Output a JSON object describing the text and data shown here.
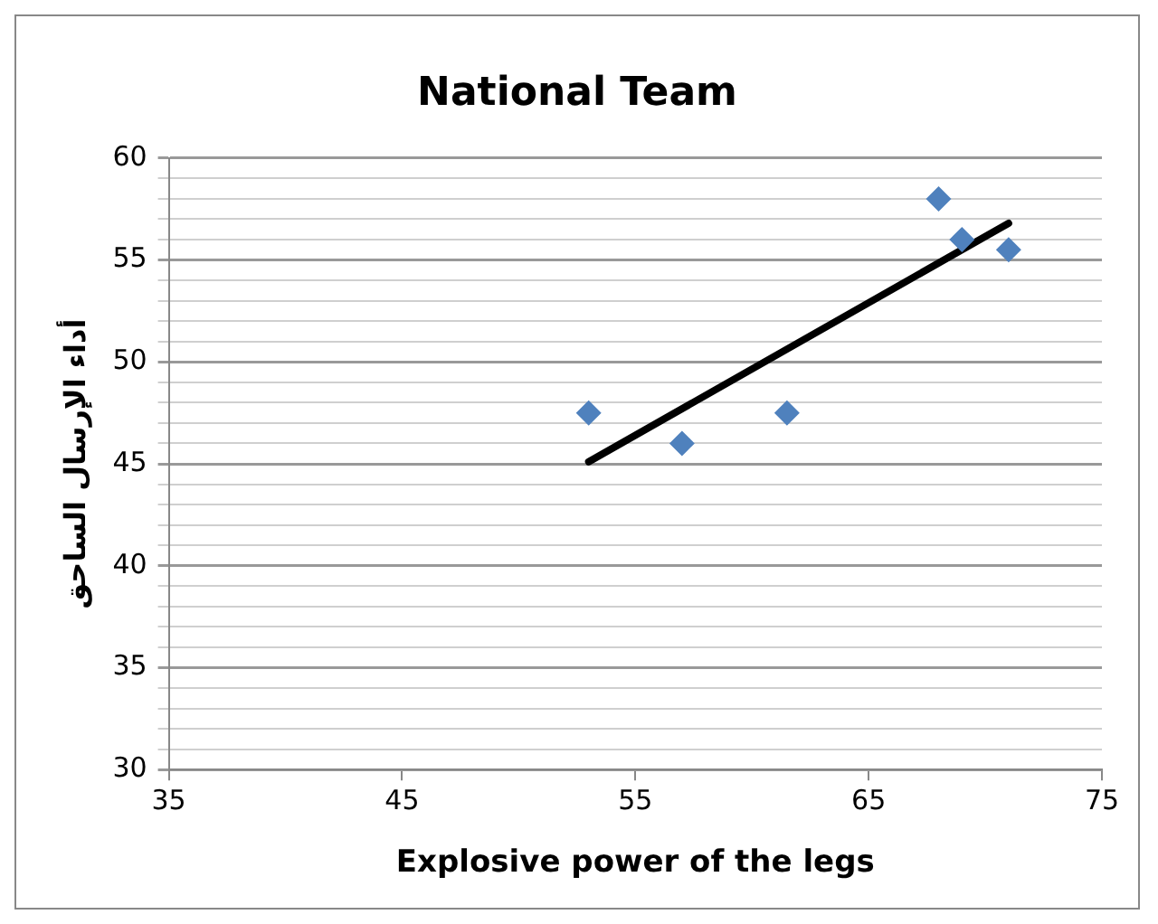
{
  "chart_data": {
    "type": "scatter",
    "title": "National Team",
    "xlabel": "Explosive power of the legs",
    "ylabel": "أداء الإرسال الساحق",
    "series": [
      {
        "color": "#4f81bd",
        "marker": "diamond",
        "x": [
          53,
          57,
          61.5,
          68,
          69,
          71
        ],
        "values": [
          47.5,
          46,
          47.5,
          58,
          56,
          55.5
        ]
      },
      {
        "type": "line",
        "color": "#000000",
        "marker": "none",
        "line_style": "solid",
        "x": [
          53,
          71
        ],
        "values": [
          45.1,
          56.8
        ]
      }
    ],
    "xlim": [
      35,
      75
    ],
    "xticks": [
      35,
      45,
      55,
      65,
      75
    ],
    "ylim": [
      30,
      60
    ],
    "yticks": [
      30,
      {
        "value": 31,
        "label": null
      },
      {
        "value": 32,
        "label": null
      },
      {
        "value": 33,
        "label": null
      },
      {
        "value": 34,
        "label": null
      },
      35,
      {
        "value": 36,
        "label": null
      },
      {
        "value": 37,
        "label": null
      },
      {
        "value": 38,
        "label": null
      },
      {
        "value": 39,
        "label": null
      },
      40,
      {
        "value": 41,
        "label": null
      },
      {
        "value": 42,
        "label": null
      },
      {
        "value": 43,
        "label": null
      },
      {
        "value": 44,
        "label": null
      },
      45,
      {
        "value": 46,
        "label": null
      },
      {
        "value": 47,
        "label": null
      },
      {
        "value": 48,
        "label": null
      },
      {
        "value": 49,
        "label": null
      },
      50,
      {
        "value": 51,
        "label": null
      },
      {
        "value": 52,
        "label": null
      },
      {
        "value": 53,
        "label": null
      },
      {
        "value": 54,
        "label": null
      },
      55,
      {
        "value": 56,
        "label": null
      },
      {
        "value": 57,
        "label": null
      },
      {
        "value": 58,
        "label": null
      },
      {
        "value": 59,
        "label": null
      },
      60
    ],
    "grid": "y",
    "legend": false
  }
}
